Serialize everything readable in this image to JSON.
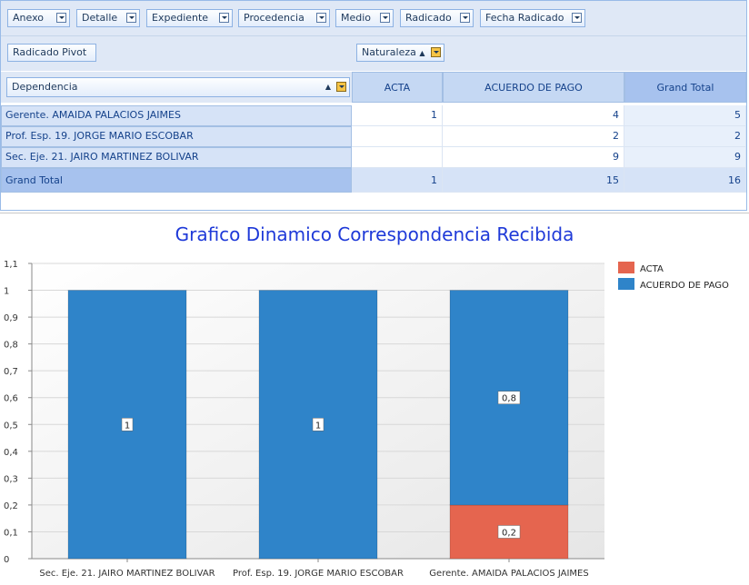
{
  "filters": [
    "Anexo",
    "Detalle",
    "Expediente",
    "Procedencia",
    "Medio",
    "Radicado",
    "Fecha Radicado"
  ],
  "data_field": "Radicado Pivot",
  "column_field": "Naturaleza",
  "column_field_sort": "▲",
  "row_field": "Dependencia",
  "row_field_sort": "▲",
  "columns": [
    "ACTA",
    "ACUERDO DE PAGO",
    "Grand Total"
  ],
  "rows": [
    {
      "label": "Gerente. AMAIDA PALACIOS JAIMES",
      "acta": "1",
      "acuerdo": "4",
      "total": "5"
    },
    {
      "label": "Prof. Esp. 19. JORGE MARIO ESCOBAR",
      "acta": "",
      "acuerdo": "2",
      "total": "2"
    },
    {
      "label": "Sec. Eje. 21. JAIRO MARTINEZ BOLIVAR",
      "acta": "",
      "acuerdo": "9",
      "total": "9"
    }
  ],
  "grand_total": {
    "label": "Grand Total",
    "acta": "1",
    "acuerdo": "15",
    "total": "16"
  },
  "chart": {
    "title": "Grafico Dinamico Correspondencia Recibida",
    "legend": [
      {
        "name": "ACTA",
        "color": "#e5654f"
      },
      {
        "name": "ACUERDO DE PAGO",
        "color": "#2f84c9"
      }
    ]
  },
  "chart_data": {
    "type": "bar",
    "stacked": true,
    "categories": [
      "Sec. Eje. 21. JAIRO MARTINEZ BOLIVAR",
      "Prof. Esp. 19. JORGE MARIO ESCOBAR",
      "Gerente. AMAIDA PALACIOS JAIMES"
    ],
    "series": [
      {
        "name": "ACTA",
        "values": [
          0,
          0,
          0.2
        ],
        "labels": [
          "",
          "",
          "0,2"
        ]
      },
      {
        "name": "ACUERDO DE PAGO",
        "values": [
          1,
          1,
          0.8
        ],
        "labels": [
          "1",
          "1",
          "0,8"
        ]
      }
    ],
    "ylim": [
      0,
      1.1
    ],
    "yticks": [
      "0",
      "0,1",
      "0,2",
      "0,3",
      "0,4",
      "0,5",
      "0,6",
      "0,7",
      "0,8",
      "0,9",
      "1",
      "1,1"
    ],
    "grid": true,
    "legend_position": "top-right"
  }
}
